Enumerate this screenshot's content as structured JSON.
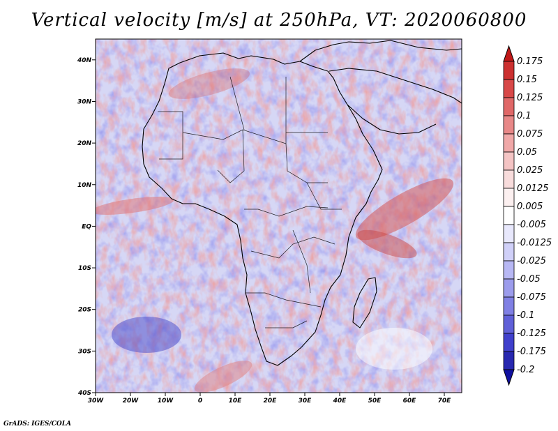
{
  "title": "Vertical velocity [m/s] at 250hPa, VT: 2020060800",
  "credit": "GrADS: IGES/COLA",
  "map": {
    "lon_range": [
      -30,
      75
    ],
    "lat_range": [
      -40,
      45
    ],
    "lon_ticks": [
      {
        "value": -30,
        "label": "30W"
      },
      {
        "value": -20,
        "label": "20W"
      },
      {
        "value": -10,
        "label": "10W"
      },
      {
        "value": 0,
        "label": "0"
      },
      {
        "value": 10,
        "label": "10E"
      },
      {
        "value": 20,
        "label": "20E"
      },
      {
        "value": 30,
        "label": "30E"
      },
      {
        "value": 40,
        "label": "40E"
      },
      {
        "value": 50,
        "label": "50E"
      },
      {
        "value": 60,
        "label": "60E"
      },
      {
        "value": 70,
        "label": "70E"
      }
    ],
    "lat_ticks": [
      {
        "value": 40,
        "label": "40N"
      },
      {
        "value": 30,
        "label": "30N"
      },
      {
        "value": 20,
        "label": "20N"
      },
      {
        "value": 10,
        "label": "10N"
      },
      {
        "value": 0,
        "label": "EQ"
      },
      {
        "value": -10,
        "label": "10S"
      },
      {
        "value": -20,
        "label": "20S"
      },
      {
        "value": -30,
        "label": "30S"
      },
      {
        "value": -40,
        "label": "40S"
      }
    ]
  },
  "colorbar": {
    "labels": [
      "0.175",
      "0.15",
      "0.125",
      "0.1",
      "0.075",
      "0.05",
      "0.025",
      "0.0125",
      "0.005",
      "-0.005",
      "-0.0125",
      "-0.025",
      "-0.05",
      "-0.075",
      "-0.1",
      "-0.125",
      "-0.175",
      "-0.2"
    ],
    "colors": [
      "#c01818",
      "#cc3030",
      "#d84848",
      "#e06868",
      "#e88888",
      "#f0a8a8",
      "#f4c4c4",
      "#f8dcdc",
      "#fcf0f0",
      "#ffffff",
      "#e8e8fc",
      "#d0d0f8",
      "#b8b8f4",
      "#9c9cec",
      "#8080e4",
      "#6060d8",
      "#4040cc",
      "#2828b0",
      "#1010a0"
    ]
  },
  "colors": {
    "background_field": "#cfd0f3",
    "updraft": "#e07a7a",
    "downdraft": "#5a5ad6",
    "coastline": "#000000"
  }
}
